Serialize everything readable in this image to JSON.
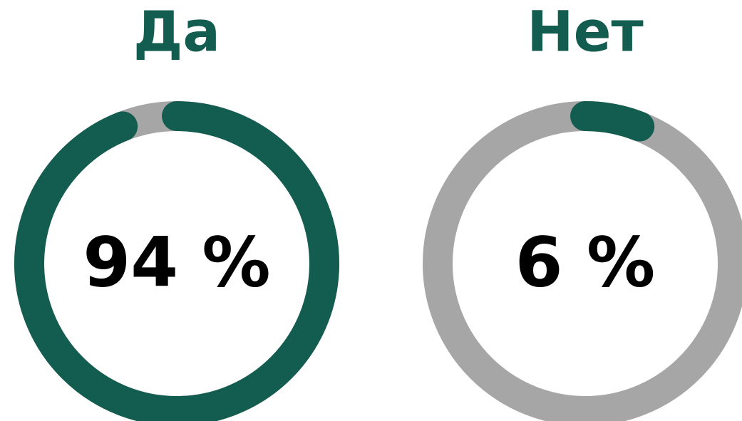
{
  "chart_data": [
    {
      "type": "donut",
      "title": "Да",
      "values": [
        94
      ],
      "value_labels": [
        "94 %"
      ],
      "ylim": [
        0,
        100
      ],
      "color": "#135c50",
      "track_color": "#a6a6a6"
    },
    {
      "type": "donut",
      "title": "Нет",
      "values": [
        6
      ],
      "value_labels": [
        "6 %"
      ],
      "ylim": [
        0,
        100
      ],
      "color": "#135c50",
      "track_color": "#a6a6a6"
    }
  ]
}
